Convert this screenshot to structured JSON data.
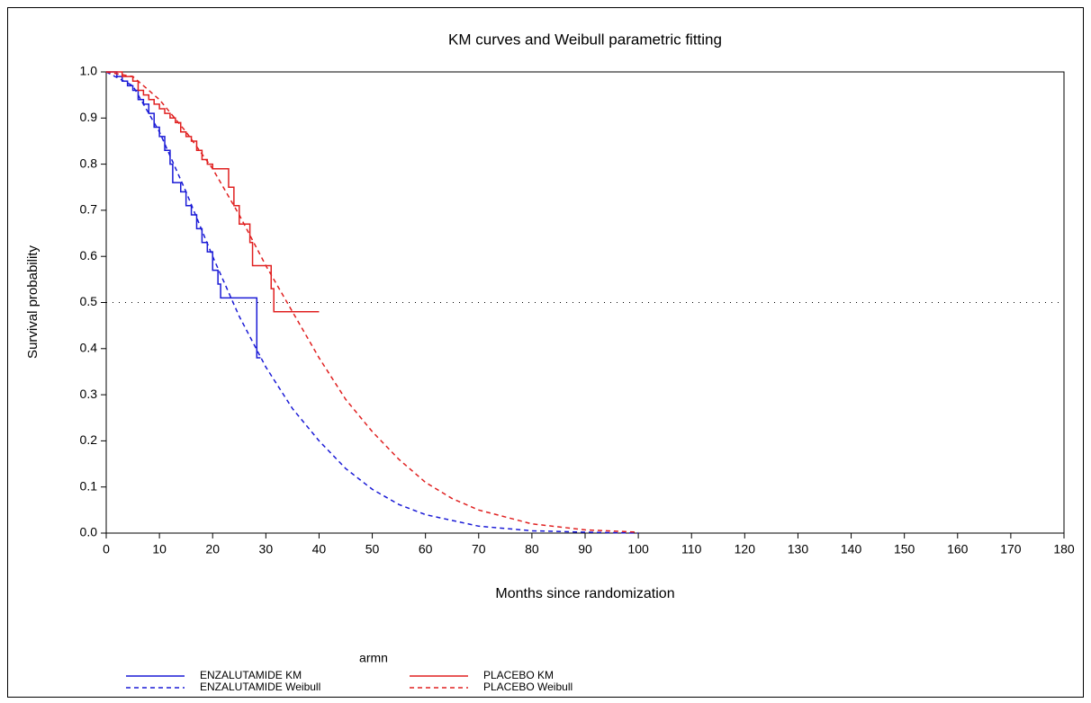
{
  "chart_data": {
    "type": "line",
    "title": "KM curves and Weibull parametric fitting",
    "x_label": "Months since randomization",
    "y_label": "Survival probability",
    "legend_title": "armn",
    "xlim": [
      0,
      180
    ],
    "ylim": [
      0,
      1
    ],
    "xticks": [
      0,
      10,
      20,
      30,
      40,
      50,
      60,
      70,
      80,
      90,
      100,
      110,
      120,
      130,
      140,
      150,
      160,
      170,
      180
    ],
    "yticks": [
      {
        "value": 0,
        "label": "0.0"
      },
      0.1,
      0.2,
      0.3,
      0.4,
      0.5,
      0.6,
      0.7,
      0.8,
      0.9,
      {
        "value": 1,
        "label": "1.0"
      }
    ],
    "reference_line": 0.5,
    "series": [
      {
        "name": "ENZALUTAMIDE KM",
        "color": "#1a1ad6",
        "style": "solid",
        "step": true,
        "x": [
          0,
          2,
          3,
          4,
          5,
          6,
          7,
          8,
          9,
          10,
          11,
          12,
          12.5,
          14,
          15,
          16,
          17,
          18,
          19,
          20,
          21,
          21.5,
          28.3,
          29
        ],
        "values": [
          1.0,
          0.99,
          0.98,
          0.97,
          0.96,
          0.94,
          0.93,
          0.91,
          0.88,
          0.86,
          0.83,
          0.8,
          0.76,
          0.74,
          0.71,
          0.69,
          0.66,
          0.63,
          0.61,
          0.57,
          0.54,
          0.51,
          0.38,
          0.38
        ]
      },
      {
        "name": "ENZALUTAMIDE Weibull",
        "color": "#1a1ad6",
        "style": "dashed",
        "step": false,
        "x": [
          0,
          5,
          10,
          15,
          20,
          25,
          30,
          35,
          40,
          45,
          50,
          55,
          60,
          70,
          80,
          90,
          100
        ],
        "values": [
          1.0,
          0.97,
          0.87,
          0.74,
          0.6,
          0.47,
          0.36,
          0.27,
          0.2,
          0.14,
          0.095,
          0.062,
          0.04,
          0.015,
          0.005,
          0.002,
          0.0
        ]
      },
      {
        "name": "PLACEBO KM",
        "color": "#e02020",
        "style": "solid",
        "step": true,
        "x": [
          0,
          3,
          5,
          6,
          7,
          8,
          9,
          10,
          11,
          12,
          13,
          14,
          15,
          16,
          17,
          18,
          19,
          20,
          23,
          24,
          25,
          27,
          27.5,
          31,
          31.5,
          40
        ],
        "values": [
          1.0,
          0.99,
          0.98,
          0.96,
          0.95,
          0.94,
          0.93,
          0.92,
          0.91,
          0.9,
          0.89,
          0.87,
          0.86,
          0.85,
          0.83,
          0.81,
          0.8,
          0.79,
          0.75,
          0.71,
          0.67,
          0.63,
          0.58,
          0.53,
          0.48,
          0.48
        ]
      },
      {
        "name": "PLACEBO Weibull",
        "color": "#e02020",
        "style": "dashed",
        "step": false,
        "x": [
          0,
          5,
          10,
          15,
          20,
          25,
          30,
          35,
          40,
          45,
          50,
          55,
          60,
          65,
          70,
          80,
          90,
          100
        ],
        "values": [
          1.0,
          0.99,
          0.94,
          0.87,
          0.79,
          0.69,
          0.58,
          0.48,
          0.38,
          0.29,
          0.22,
          0.16,
          0.11,
          0.075,
          0.05,
          0.02,
          0.007,
          0.002
        ]
      }
    ]
  }
}
